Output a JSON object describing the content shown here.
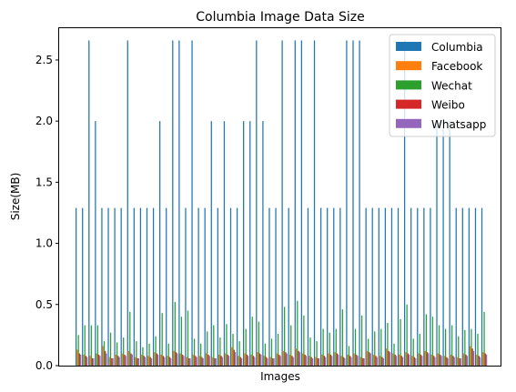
{
  "chart_data": {
    "type": "bar",
    "title": "Columbia Image Data Size",
    "xlabel": "Images",
    "ylabel": "Size(MB)",
    "ylim": [
      0,
      2.76
    ],
    "yticks": [
      "0.0",
      "0.5",
      "1.0",
      "1.5",
      "2.0",
      "2.5"
    ],
    "grid": false,
    "legend_position": "top-right",
    "series": [
      {
        "name": "Columbia",
        "color": "#1f77b4",
        "values": [
          1.29,
          1.29,
          2.66,
          2.0,
          1.29,
          1.29,
          1.29,
          1.29,
          2.66,
          1.29,
          1.29,
          1.29,
          1.29,
          2.0,
          1.29,
          2.66,
          2.66,
          1.29,
          2.66,
          1.29,
          1.29,
          2.0,
          1.29,
          2.0,
          1.29,
          1.29,
          2.0,
          2.0,
          2.66,
          2.0,
          1.29,
          1.29,
          2.66,
          1.29,
          2.66,
          2.66,
          1.29,
          2.66,
          1.29,
          1.29,
          1.29,
          1.29,
          2.66,
          2.66,
          2.66,
          1.29,
          1.29,
          1.29,
          1.29,
          1.29,
          1.29,
          2.66,
          1.29,
          1.29,
          1.29,
          1.29,
          2.0,
          2.0,
          2.0,
          1.29,
          1.29,
          1.29,
          1.29,
          1.29
        ]
      },
      {
        "name": "Facebook",
        "color": "#ff7f0e",
        "values": [
          0.13,
          0.09,
          0.08,
          0.1,
          0.16,
          0.07,
          0.09,
          0.1,
          0.12,
          0.07,
          0.09,
          0.08,
          0.11,
          0.09,
          0.08,
          0.12,
          0.1,
          0.07,
          0.09,
          0.08,
          0.1,
          0.07,
          0.09,
          0.1,
          0.15,
          0.08,
          0.1,
          0.09,
          0.11,
          0.08,
          0.07,
          0.1,
          0.12,
          0.09,
          0.14,
          0.1,
          0.08,
          0.07,
          0.09,
          0.1,
          0.11,
          0.08,
          0.09,
          0.1,
          0.07,
          0.12,
          0.09,
          0.08,
          0.14,
          0.1,
          0.09,
          0.11,
          0.08,
          0.1,
          0.12,
          0.09,
          0.1,
          0.08,
          0.09,
          0.07,
          0.1,
          0.16,
          0.09,
          0.11
        ]
      },
      {
        "name": "Wechat",
        "color": "#2ca02c",
        "values": [
          0.25,
          0.33,
          0.33,
          0.33,
          0.2,
          0.27,
          0.19,
          0.23,
          0.44,
          0.2,
          0.15,
          0.18,
          0.24,
          0.43,
          0.18,
          0.52,
          0.4,
          0.45,
          0.22,
          0.18,
          0.28,
          0.33,
          0.23,
          0.34,
          0.26,
          0.2,
          0.3,
          0.4,
          0.36,
          0.18,
          0.22,
          0.26,
          0.48,
          0.33,
          0.53,
          0.41,
          0.23,
          0.2,
          0.3,
          0.27,
          0.3,
          0.46,
          0.16,
          0.3,
          0.41,
          0.22,
          0.28,
          0.3,
          0.35,
          0.18,
          0.38,
          0.5,
          0.22,
          0.26,
          0.42,
          0.4,
          0.33,
          0.3,
          0.33,
          0.24,
          0.29,
          0.3,
          0.26,
          0.44
        ]
      },
      {
        "name": "Weibo",
        "color": "#d62728",
        "values": [
          0.1,
          0.08,
          0.06,
          0.09,
          0.12,
          0.06,
          0.08,
          0.09,
          0.1,
          0.06,
          0.08,
          0.07,
          0.1,
          0.08,
          0.07,
          0.11,
          0.09,
          0.06,
          0.08,
          0.07,
          0.09,
          0.06,
          0.08,
          0.09,
          0.13,
          0.07,
          0.09,
          0.08,
          0.1,
          0.07,
          0.06,
          0.09,
          0.11,
          0.08,
          0.12,
          0.09,
          0.07,
          0.06,
          0.08,
          0.09,
          0.1,
          0.07,
          0.08,
          0.09,
          0.06,
          0.11,
          0.08,
          0.07,
          0.12,
          0.09,
          0.08,
          0.1,
          0.07,
          0.09,
          0.11,
          0.08,
          0.09,
          0.07,
          0.08,
          0.06,
          0.09,
          0.14,
          0.08,
          0.1
        ]
      },
      {
        "name": "Whatsapp",
        "color": "#9467bd",
        "values": [
          0.09,
          0.07,
          0.06,
          0.08,
          0.1,
          0.06,
          0.07,
          0.08,
          0.09,
          0.06,
          0.07,
          0.06,
          0.09,
          0.07,
          0.06,
          0.1,
          0.08,
          0.06,
          0.07,
          0.06,
          0.08,
          0.06,
          0.07,
          0.08,
          0.11,
          0.06,
          0.08,
          0.07,
          0.09,
          0.06,
          0.06,
          0.08,
          0.1,
          0.07,
          0.11,
          0.08,
          0.06,
          0.06,
          0.07,
          0.08,
          0.09,
          0.06,
          0.07,
          0.08,
          0.06,
          0.1,
          0.07,
          0.06,
          0.11,
          0.08,
          0.07,
          0.09,
          0.06,
          0.08,
          0.1,
          0.07,
          0.08,
          0.06,
          0.07,
          0.06,
          0.08,
          0.12,
          0.07,
          0.09
        ]
      }
    ]
  }
}
